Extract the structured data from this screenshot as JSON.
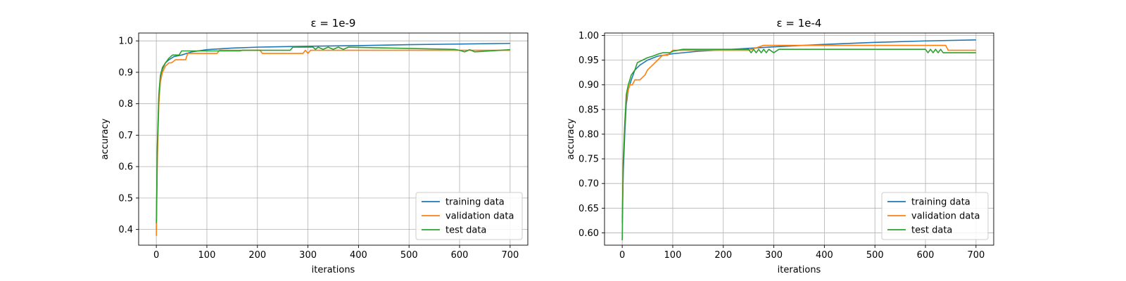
{
  "chart_data": [
    {
      "type": "line",
      "title": "ε = 1e-9",
      "xlabel": "iterations",
      "ylabel": "accuracy",
      "xlim": [
        -35,
        735
      ],
      "ylim": [
        0.35,
        1.025
      ],
      "xticks": [
        0,
        100,
        200,
        300,
        400,
        500,
        600,
        700
      ],
      "yticks": [
        0.4,
        0.5,
        0.6,
        0.7,
        0.8,
        0.9,
        1.0
      ],
      "ytick_labels": [
        "0.4",
        "0.5",
        "0.6",
        "0.7",
        "0.8",
        "0.9",
        "1.0"
      ],
      "grid": true,
      "legend_position": "lower-right",
      "series": [
        {
          "name": "training data",
          "color": "#1f77b4",
          "x": [
            0,
            2,
            5,
            8,
            12,
            18,
            25,
            35,
            50,
            70,
            100,
            150,
            200,
            300,
            400,
            500,
            600,
            700
          ],
          "y": [
            0.4,
            0.65,
            0.82,
            0.88,
            0.91,
            0.93,
            0.94,
            0.95,
            0.955,
            0.965,
            0.972,
            0.977,
            0.98,
            0.983,
            0.985,
            0.988,
            0.99,
            0.992
          ]
        },
        {
          "name": "validation data",
          "color": "#ff7f0e",
          "x": [
            0,
            2,
            5,
            8,
            12,
            18,
            25,
            30,
            38,
            45,
            58,
            62,
            120,
            125,
            160,
            205,
            210,
            230,
            290,
            295,
            300,
            305,
            320,
            700
          ],
          "y": [
            0.38,
            0.62,
            0.8,
            0.87,
            0.9,
            0.92,
            0.93,
            0.93,
            0.94,
            0.94,
            0.94,
            0.96,
            0.96,
            0.97,
            0.97,
            0.97,
            0.96,
            0.96,
            0.96,
            0.97,
            0.96,
            0.97,
            0.97,
            0.97
          ]
        },
        {
          "name": "test data",
          "color": "#2ca02c",
          "x": [
            0,
            2,
            5,
            8,
            12,
            18,
            25,
            32,
            45,
            50,
            165,
            170,
            265,
            270,
            310,
            315,
            320,
            330,
            340,
            350,
            360,
            370,
            380,
            590,
            600,
            610,
            620,
            630,
            700
          ],
          "y": [
            0.42,
            0.67,
            0.83,
            0.89,
            0.915,
            0.93,
            0.945,
            0.955,
            0.955,
            0.968,
            0.968,
            0.97,
            0.97,
            0.98,
            0.98,
            0.973,
            0.98,
            0.973,
            0.98,
            0.973,
            0.98,
            0.973,
            0.98,
            0.973,
            0.97,
            0.965,
            0.972,
            0.965,
            0.972
          ]
        }
      ]
    },
    {
      "type": "line",
      "title": "ε = 1e-4",
      "xlabel": "iterations",
      "ylabel": "accuracy",
      "xlim": [
        -35,
        735
      ],
      "ylim": [
        0.575,
        1.005
      ],
      "xticks": [
        0,
        100,
        200,
        300,
        400,
        500,
        600,
        700
      ],
      "yticks": [
        0.6,
        0.65,
        0.7,
        0.75,
        0.8,
        0.85,
        0.9,
        0.95,
        1.0
      ],
      "ytick_labels": [
        "0.60",
        "0.65",
        "0.70",
        "0.75",
        "0.80",
        "0.85",
        "0.90",
        "0.95",
        "1.00"
      ],
      "grid": true,
      "legend_position": "lower-right",
      "series": [
        {
          "name": "training data",
          "color": "#1f77b4",
          "x": [
            0,
            2,
            5,
            8,
            12,
            18,
            25,
            35,
            50,
            70,
            100,
            150,
            200,
            250,
            300,
            400,
            500,
            600,
            700
          ],
          "y": [
            0.63,
            0.72,
            0.8,
            0.86,
            0.89,
            0.91,
            0.93,
            0.94,
            0.95,
            0.958,
            0.963,
            0.968,
            0.971,
            0.974,
            0.977,
            0.982,
            0.986,
            0.989,
            0.991
          ]
        },
        {
          "name": "validation data",
          "color": "#ff7f0e",
          "x": [
            0,
            2,
            5,
            8,
            12,
            15,
            20,
            25,
            30,
            35,
            45,
            50,
            60,
            70,
            80,
            90,
            100,
            110,
            115,
            250,
            280,
            290,
            640,
            645,
            690,
            695,
            700
          ],
          "y": [
            0.62,
            0.75,
            0.82,
            0.87,
            0.89,
            0.9,
            0.9,
            0.91,
            0.91,
            0.91,
            0.92,
            0.93,
            0.94,
            0.95,
            0.96,
            0.96,
            0.97,
            0.97,
            0.97,
            0.97,
            0.98,
            0.98,
            0.98,
            0.97,
            0.97,
            0.97,
            0.97
          ]
        },
        {
          "name": "test data",
          "color": "#2ca02c",
          "x": [
            0,
            2,
            5,
            8,
            12,
            18,
            25,
            30,
            40,
            50,
            60,
            70,
            80,
            95,
            100,
            120,
            250,
            255,
            260,
            265,
            270,
            275,
            280,
            285,
            290,
            300,
            310,
            320,
            600,
            605,
            610,
            615,
            620,
            625,
            630,
            635,
            640,
            700
          ],
          "y": [
            0.585,
            0.74,
            0.82,
            0.88,
            0.9,
            0.92,
            0.93,
            0.945,
            0.95,
            0.955,
            0.958,
            0.962,
            0.965,
            0.965,
            0.968,
            0.972,
            0.972,
            0.965,
            0.972,
            0.965,
            0.972,
            0.965,
            0.972,
            0.965,
            0.972,
            0.965,
            0.972,
            0.972,
            0.972,
            0.965,
            0.972,
            0.965,
            0.972,
            0.965,
            0.972,
            0.965,
            0.965,
            0.965
          ]
        }
      ]
    }
  ]
}
